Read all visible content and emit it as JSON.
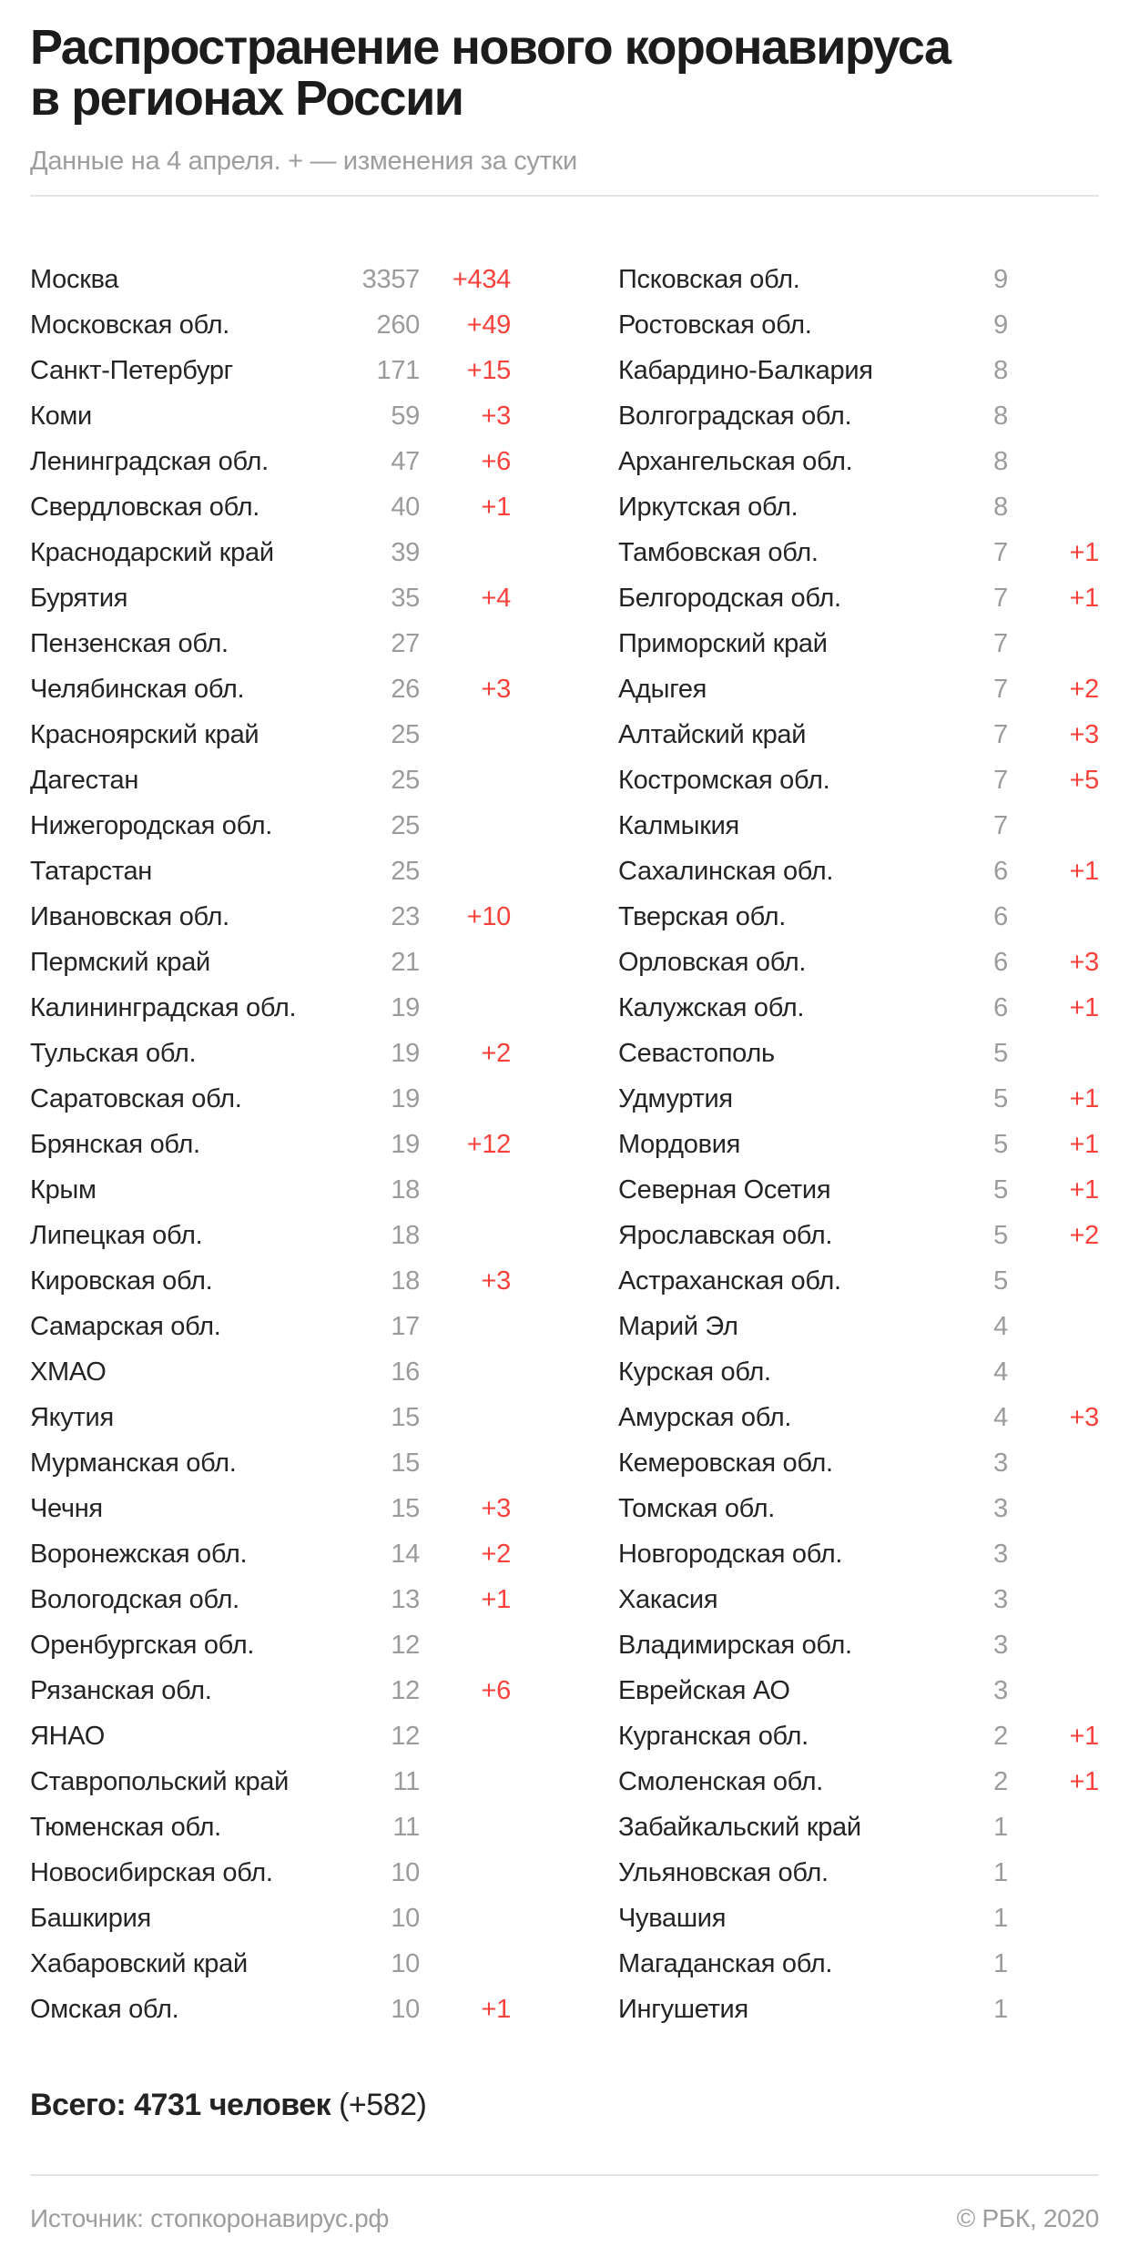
{
  "header": {
    "title_line1": "Распространение нового коронавируса",
    "title_line2": "в регионах России",
    "subtitle": "Данные на 4 апреля. + — изменения за сутки"
  },
  "table": {
    "left_rows": [
      {
        "region": "Москва",
        "count": "3357",
        "change": "+434"
      },
      {
        "region": "Московская обл.",
        "count": "260",
        "change": "+49"
      },
      {
        "region": "Санкт-Петербург",
        "count": "171",
        "change": "+15"
      },
      {
        "region": "Коми",
        "count": "59",
        "change": "+3"
      },
      {
        "region": "Ленинградская обл.",
        "count": "47",
        "change": "+6"
      },
      {
        "region": "Свердловская обл.",
        "count": "40",
        "change": "+1"
      },
      {
        "region": "Краснодарский край",
        "count": "39",
        "change": ""
      },
      {
        "region": "Бурятия",
        "count": "35",
        "change": "+4"
      },
      {
        "region": "Пензенская обл.",
        "count": "27",
        "change": ""
      },
      {
        "region": "Челябинская обл.",
        "count": "26",
        "change": "+3"
      },
      {
        "region": "Красноярский край",
        "count": "25",
        "change": ""
      },
      {
        "region": "Дагестан",
        "count": "25",
        "change": ""
      },
      {
        "region": "Нижегородская обл.",
        "count": "25",
        "change": ""
      },
      {
        "region": "Татарстан",
        "count": "25",
        "change": ""
      },
      {
        "region": "Ивановская обл.",
        "count": "23",
        "change": "+10"
      },
      {
        "region": "Пермский край",
        "count": "21",
        "change": ""
      },
      {
        "region": "Калининградская обл.",
        "count": "19",
        "change": ""
      },
      {
        "region": "Тульская обл.",
        "count": "19",
        "change": "+2"
      },
      {
        "region": "Саратовская обл.",
        "count": "19",
        "change": ""
      },
      {
        "region": "Брянская обл.",
        "count": "19",
        "change": "+12"
      },
      {
        "region": "Крым",
        "count": "18",
        "change": ""
      },
      {
        "region": "Липецкая обл.",
        "count": "18",
        "change": ""
      },
      {
        "region": "Кировская обл.",
        "count": "18",
        "change": "+3"
      },
      {
        "region": "Самарская обл.",
        "count": "17",
        "change": ""
      },
      {
        "region": "ХМАО",
        "count": "16",
        "change": ""
      },
      {
        "region": "Якутия",
        "count": "15",
        "change": ""
      },
      {
        "region": "Мурманская обл.",
        "count": "15",
        "change": ""
      },
      {
        "region": "Чечня",
        "count": "15",
        "change": "+3"
      },
      {
        "region": "Воронежская обл.",
        "count": "14",
        "change": "+2"
      },
      {
        "region": "Вологодская обл.",
        "count": "13",
        "change": "+1"
      },
      {
        "region": "Оренбургская обл.",
        "count": "12",
        "change": ""
      },
      {
        "region": "Рязанская обл.",
        "count": "12",
        "change": "+6"
      },
      {
        "region": "ЯНАО",
        "count": "12",
        "change": ""
      },
      {
        "region": "Ставропольский край",
        "count": "11",
        "change": ""
      },
      {
        "region": "Тюменская обл.",
        "count": "11",
        "change": ""
      },
      {
        "region": "Новосибирская обл.",
        "count": "10",
        "change": ""
      },
      {
        "region": "Башкирия",
        "count": "10",
        "change": ""
      },
      {
        "region": "Хабаровский край",
        "count": "10",
        "change": ""
      },
      {
        "region": "Омская обл.",
        "count": "10",
        "change": "+1"
      }
    ],
    "right_rows": [
      {
        "region": "Псковская обл.",
        "count": "9",
        "change": ""
      },
      {
        "region": "Ростовская обл.",
        "count": "9",
        "change": ""
      },
      {
        "region": "Кабардино-Балкария",
        "count": "8",
        "change": ""
      },
      {
        "region": "Волгоградская обл.",
        "count": "8",
        "change": ""
      },
      {
        "region": "Архангельская обл.",
        "count": "8",
        "change": ""
      },
      {
        "region": "Иркутская обл.",
        "count": "8",
        "change": ""
      },
      {
        "region": "Тамбовская обл.",
        "count": "7",
        "change": "+1"
      },
      {
        "region": "Белгородская обл.",
        "count": "7",
        "change": "+1"
      },
      {
        "region": "Приморский край",
        "count": "7",
        "change": ""
      },
      {
        "region": "Адыгея",
        "count": "7",
        "change": "+2"
      },
      {
        "region": "Алтайский край",
        "count": "7",
        "change": "+3"
      },
      {
        "region": "Костромская обл.",
        "count": "7",
        "change": "+5"
      },
      {
        "region": "Калмыкия",
        "count": "7",
        "change": ""
      },
      {
        "region": "Сахалинская обл.",
        "count": "6",
        "change": "+1"
      },
      {
        "region": "Тверская обл.",
        "count": "6",
        "change": ""
      },
      {
        "region": "Орловская обл.",
        "count": "6",
        "change": "+3"
      },
      {
        "region": "Калужская обл.",
        "count": "6",
        "change": "+1"
      },
      {
        "region": "Севастополь",
        "count": "5",
        "change": ""
      },
      {
        "region": "Удмуртия",
        "count": "5",
        "change": "+1"
      },
      {
        "region": "Мордовия",
        "count": "5",
        "change": "+1"
      },
      {
        "region": "Северная Осетия",
        "count": "5",
        "change": "+1"
      },
      {
        "region": "Ярославская обл.",
        "count": "5",
        "change": "+2"
      },
      {
        "region": "Астраханская обл.",
        "count": "5",
        "change": ""
      },
      {
        "region": "Марий Эл",
        "count": "4",
        "change": ""
      },
      {
        "region": "Курская обл.",
        "count": "4",
        "change": ""
      },
      {
        "region": "Амурская обл.",
        "count": "4",
        "change": "+3"
      },
      {
        "region": "Кемеровская обл.",
        "count": "3",
        "change": ""
      },
      {
        "region": "Томская обл.",
        "count": "3",
        "change": ""
      },
      {
        "region": "Новгородская обл.",
        "count": "3",
        "change": ""
      },
      {
        "region": "Хакасия",
        "count": "3",
        "change": ""
      },
      {
        "region": "Владимирская обл.",
        "count": "3",
        "change": ""
      },
      {
        "region": "Еврейская АО",
        "count": "3",
        "change": ""
      },
      {
        "region": "Курганская обл.",
        "count": "2",
        "change": "+1"
      },
      {
        "region": "Смоленская обл.",
        "count": "2",
        "change": "+1"
      },
      {
        "region": "Забайкальский край",
        "count": "1",
        "change": ""
      },
      {
        "region": "Ульяновская обл.",
        "count": "1",
        "change": ""
      },
      {
        "region": "Чувашия",
        "count": "1",
        "change": ""
      },
      {
        "region": "Магаданская обл.",
        "count": "1",
        "change": ""
      },
      {
        "region": "Ингушетия",
        "count": "1",
        "change": ""
      }
    ]
  },
  "total": {
    "bold": "Всего: 4731 человек",
    "change": "(+582)"
  },
  "footer": {
    "source": "Источник: стопкоронавирус.рф",
    "copyright": "© РБК, 2020"
  },
  "colors": {
    "accent_red": "#f9423c",
    "count_gray": "#9b9b9b",
    "text_dark": "#1c1c1c",
    "divider": "#e4e4e4"
  },
  "chart_data": {
    "type": "table",
    "title": "Распространение нового коронавируса в регионах России",
    "subtitle": "Данные на 4 апреля. + — изменения за сутки",
    "columns": [
      "region",
      "cases",
      "daily_change"
    ],
    "rows": [
      [
        "Москва",
        3357,
        434
      ],
      [
        "Московская обл.",
        260,
        49
      ],
      [
        "Санкт-Петербург",
        171,
        15
      ],
      [
        "Коми",
        59,
        3
      ],
      [
        "Ленинградская обл.",
        47,
        6
      ],
      [
        "Свердловская обл.",
        40,
        1
      ],
      [
        "Краснодарский край",
        39,
        null
      ],
      [
        "Бурятия",
        35,
        4
      ],
      [
        "Пензенская обл.",
        27,
        null
      ],
      [
        "Челябинская обл.",
        26,
        3
      ],
      [
        "Красноярский край",
        25,
        null
      ],
      [
        "Дагестан",
        25,
        null
      ],
      [
        "Нижегородская обл.",
        25,
        null
      ],
      [
        "Татарстан",
        25,
        null
      ],
      [
        "Ивановская обл.",
        23,
        10
      ],
      [
        "Пермский край",
        21,
        null
      ],
      [
        "Калининградская обл.",
        19,
        null
      ],
      [
        "Тульская обл.",
        19,
        2
      ],
      [
        "Саратовская обл.",
        19,
        null
      ],
      [
        "Брянская обл.",
        19,
        12
      ],
      [
        "Крым",
        18,
        null
      ],
      [
        "Липецкая обл.",
        18,
        null
      ],
      [
        "Кировская обл.",
        18,
        3
      ],
      [
        "Самарская обл.",
        17,
        null
      ],
      [
        "ХМАО",
        16,
        null
      ],
      [
        "Якутия",
        15,
        null
      ],
      [
        "Мурманская обл.",
        15,
        null
      ],
      [
        "Чечня",
        15,
        3
      ],
      [
        "Воронежская обл.",
        14,
        2
      ],
      [
        "Вологодская обл.",
        13,
        1
      ],
      [
        "Оренбургская обл.",
        12,
        null
      ],
      [
        "Рязанская обл.",
        12,
        6
      ],
      [
        "ЯНАО",
        12,
        null
      ],
      [
        "Ставропольский край",
        11,
        null
      ],
      [
        "Тюменская обл.",
        11,
        null
      ],
      [
        "Новосибирская обл.",
        10,
        null
      ],
      [
        "Башкирия",
        10,
        null
      ],
      [
        "Хабаровский край",
        10,
        null
      ],
      [
        "Омская обл.",
        10,
        1
      ],
      [
        "Псковская обл.",
        9,
        null
      ],
      [
        "Ростовская обл.",
        9,
        null
      ],
      [
        "Кабардино-Балкария",
        8,
        null
      ],
      [
        "Волгоградская обл.",
        8,
        null
      ],
      [
        "Архангельская обл.",
        8,
        null
      ],
      [
        "Иркутская обл.",
        8,
        null
      ],
      [
        "Тамбовская обл.",
        7,
        1
      ],
      [
        "Белгородская обл.",
        7,
        1
      ],
      [
        "Приморский край",
        7,
        null
      ],
      [
        "Адыгея",
        7,
        2
      ],
      [
        "Алтайский край",
        7,
        3
      ],
      [
        "Костромская обл.",
        7,
        5
      ],
      [
        "Калмыкия",
        7,
        null
      ],
      [
        "Сахалинская обл.",
        6,
        1
      ],
      [
        "Тверская обл.",
        6,
        null
      ],
      [
        "Орловская обл.",
        6,
        3
      ],
      [
        "Калужская обл.",
        6,
        1
      ],
      [
        "Севастополь",
        5,
        null
      ],
      [
        "Удмуртия",
        5,
        1
      ],
      [
        "Мордовия",
        5,
        1
      ],
      [
        "Северная Осетия",
        5,
        1
      ],
      [
        "Ярославская обл.",
        5,
        2
      ],
      [
        "Астраханская обл.",
        5,
        null
      ],
      [
        "Марий Эл",
        4,
        null
      ],
      [
        "Курская обл.",
        4,
        null
      ],
      [
        "Амурская обл.",
        4,
        3
      ],
      [
        "Кемеровская обл.",
        3,
        null
      ],
      [
        "Томская обл.",
        3,
        null
      ],
      [
        "Новгородская обл.",
        3,
        null
      ],
      [
        "Хакасия",
        3,
        null
      ],
      [
        "Владимирская обл.",
        3,
        null
      ],
      [
        "Еврейская АО",
        3,
        null
      ],
      [
        "Курганская обл.",
        2,
        1
      ],
      [
        "Смоленская обл.",
        2,
        1
      ],
      [
        "Забайкальский край",
        1,
        null
      ],
      [
        "Ульяновская обл.",
        1,
        null
      ],
      [
        "Чувашия",
        1,
        null
      ],
      [
        "Магаданская обл.",
        1,
        null
      ],
      [
        "Ингушетия",
        1,
        null
      ]
    ],
    "total_cases": 4731,
    "total_daily_change": 582,
    "layout": {
      "columns_on_page": 2,
      "rows_per_column": 39,
      "legend": "none",
      "grid": "off"
    }
  }
}
